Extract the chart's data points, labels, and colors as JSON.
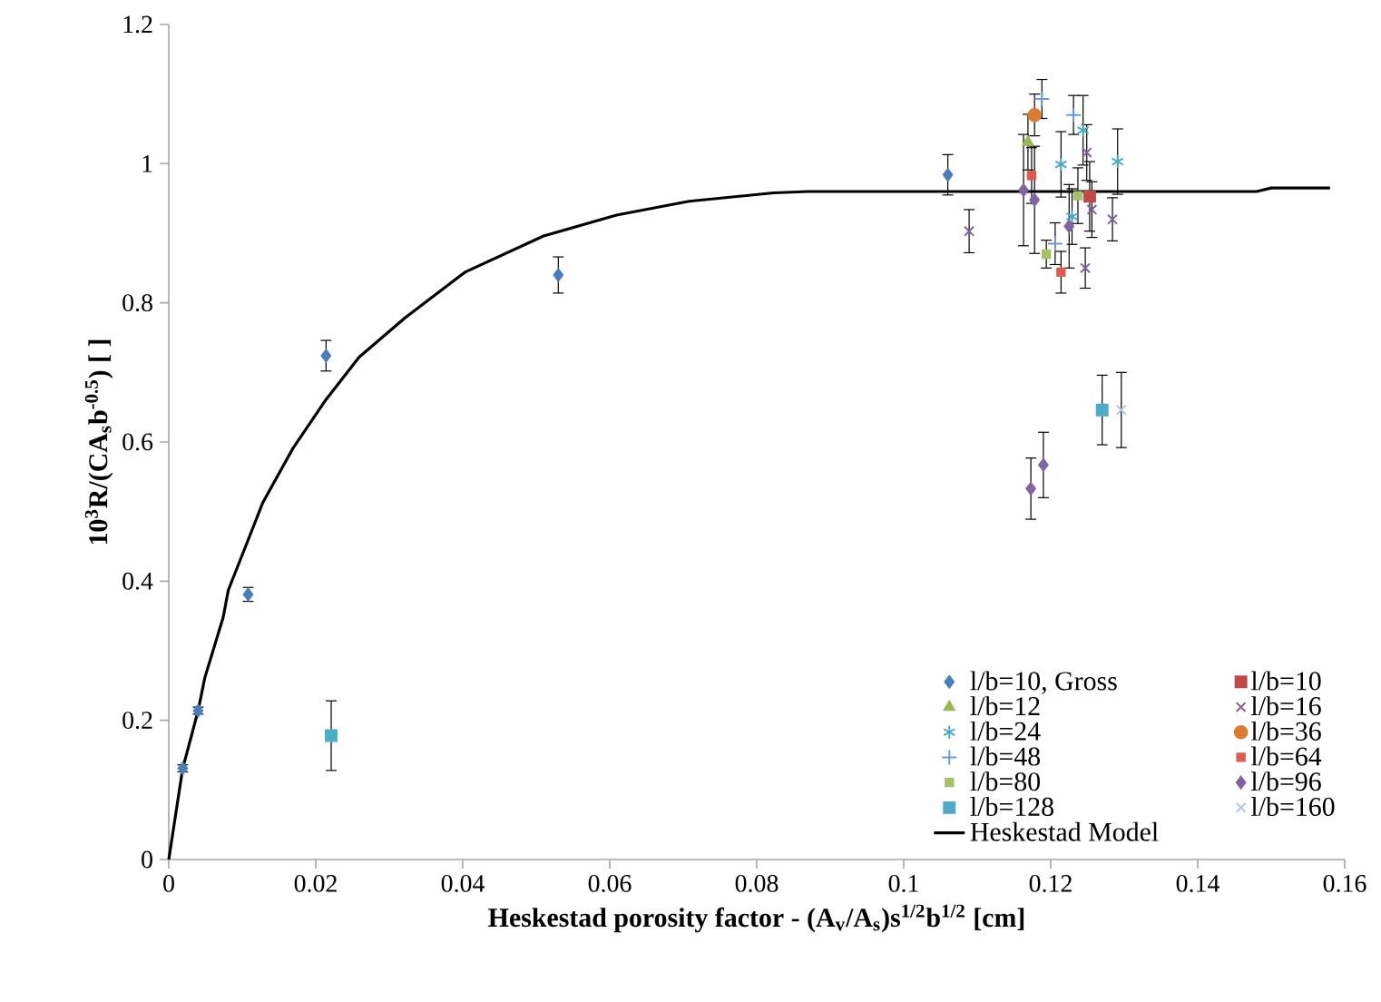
{
  "chart_data": {
    "type": "scatter",
    "xlabel": "Heskestad porosity factor - (A$_{v}$/A$_{s}$)s$^{1/2}$b$^{1/2}$ [cm]",
    "ylabel": "10$^{3}$R/(CA$_{s}$b$^{-0.5}$) [ ]",
    "xlim": [
      0,
      0.16
    ],
    "xticks": [
      0,
      0.02,
      0.04,
      0.06,
      0.08,
      0.1,
      0.12,
      0.14,
      0.16
    ],
    "ylim": [
      0,
      1.2
    ],
    "yticks": [
      0,
      0.2,
      0.4,
      0.6,
      0.8,
      1,
      1.2
    ],
    "grid": false,
    "legend": "bottom right",
    "series": [
      {
        "name": "l/b=10, Gross",
        "color": "#4a7ebb",
        "marker": "diamond",
        "x": [
          0.0019,
          0.004,
          0.0108,
          0.0214,
          0.053,
          0.106
        ],
        "values": [
          0.131,
          0.214,
          0.381,
          0.724,
          0.84,
          0.984
        ],
        "errors": [
          0.005,
          0.005,
          0.01,
          0.022,
          0.026,
          0.029
        ]
      },
      {
        "name": "l/b=10",
        "color": "#be4b48",
        "marker": "square",
        "x": [
          0.1253
        ],
        "values": [
          0.953
        ],
        "errors": [
          0.05
        ]
      },
      {
        "name": "l/b=12",
        "color": "#98b954",
        "marker": "triangle",
        "x": [
          0.1169
        ],
        "values": [
          1.031
        ],
        "errors": [
          0.04
        ]
      },
      {
        "name": "l/b=16",
        "color": "#7d60a0",
        "marker": "cross",
        "x": [
          0.1089,
          0.1249,
          0.1256,
          0.1284,
          0.1247
        ],
        "values": [
          0.903,
          1.016,
          0.934,
          0.92,
          0.85
        ],
        "errors": [
          0.031,
          0.04,
          0.04,
          0.031,
          0.029
        ]
      },
      {
        "name": "l/b=24",
        "color": "#46aac5",
        "marker": "cross",
        "x": [
          0.1214,
          0.1244,
          0.1229,
          0.1291
        ],
        "values": [
          0.999,
          1.048,
          0.924,
          1.003
        ],
        "errors": [
          0.047,
          0.05,
          0.04,
          0.047
        ]
      },
      {
        "name": "l/b=36",
        "color": "#dd7c30",
        "marker": "circle",
        "x": [
          0.1178
        ],
        "values": [
          1.07
        ],
        "errors": [
          0.03
        ]
      },
      {
        "name": "l/b=48",
        "color": "#6c9bd2",
        "marker": "plus",
        "x": [
          0.1188,
          0.1231,
          0.1206
        ],
        "values": [
          1.093,
          1.07,
          0.885
        ],
        "errors": [
          0.028,
          0.028,
          0.03
        ]
      },
      {
        "name": "l/b=64",
        "color": "#e05a50",
        "marker": "square",
        "x": [
          0.1174,
          0.1214
        ],
        "values": [
          0.983,
          0.844
        ],
        "errors": [
          0.04,
          0.03
        ]
      },
      {
        "name": "l/b=80",
        "color": "#a6c266",
        "marker": "square",
        "x": [
          0.1194,
          0.1237
        ],
        "values": [
          0.87,
          0.954
        ],
        "errors": [
          0.02,
          0.04
        ]
      },
      {
        "name": "l/b=96",
        "color": "#8064a2",
        "marker": "diamond",
        "x": [
          0.1173,
          0.119,
          0.1163,
          0.1178,
          0.1225
        ],
        "values": [
          0.533,
          0.567,
          0.962,
          0.948,
          0.91
        ],
        "errors": [
          0.044,
          0.047,
          0.08,
          0.077,
          0.06
        ]
      },
      {
        "name": "l/b=128",
        "color": "#4bacc6",
        "marker": "square",
        "x": [
          0.0221,
          0.127
        ],
        "values": [
          0.178,
          0.646
        ],
        "errors": [
          0.05,
          0.05
        ]
      },
      {
        "name": "l/b=160",
        "color": "#b8c4e6",
        "marker": "cross",
        "x": [
          0.1296
        ],
        "values": [
          0.646
        ],
        "errors": [
          0.054
        ]
      },
      {
        "name": "Heskestad Model",
        "type": "line",
        "color": "#000000",
        "marker": "none",
        "x": [
          0,
          0.0019,
          0.004,
          0.0049,
          0.0074,
          0.0081,
          0.0115,
          0.0128,
          0.0169,
          0.0214,
          0.0259,
          0.0321,
          0.0403,
          0.051,
          0.0609,
          0.0708,
          0.0823,
          0.087,
          0.148,
          0.15,
          0.158
        ],
        "values": [
          0,
          0.131,
          0.214,
          0.261,
          0.348,
          0.387,
          0.478,
          0.513,
          0.591,
          0.661,
          0.722,
          0.778,
          0.844,
          0.896,
          0.926,
          0.946,
          0.958,
          0.96,
          0.96,
          0.965,
          0.965
        ]
      }
    ]
  }
}
